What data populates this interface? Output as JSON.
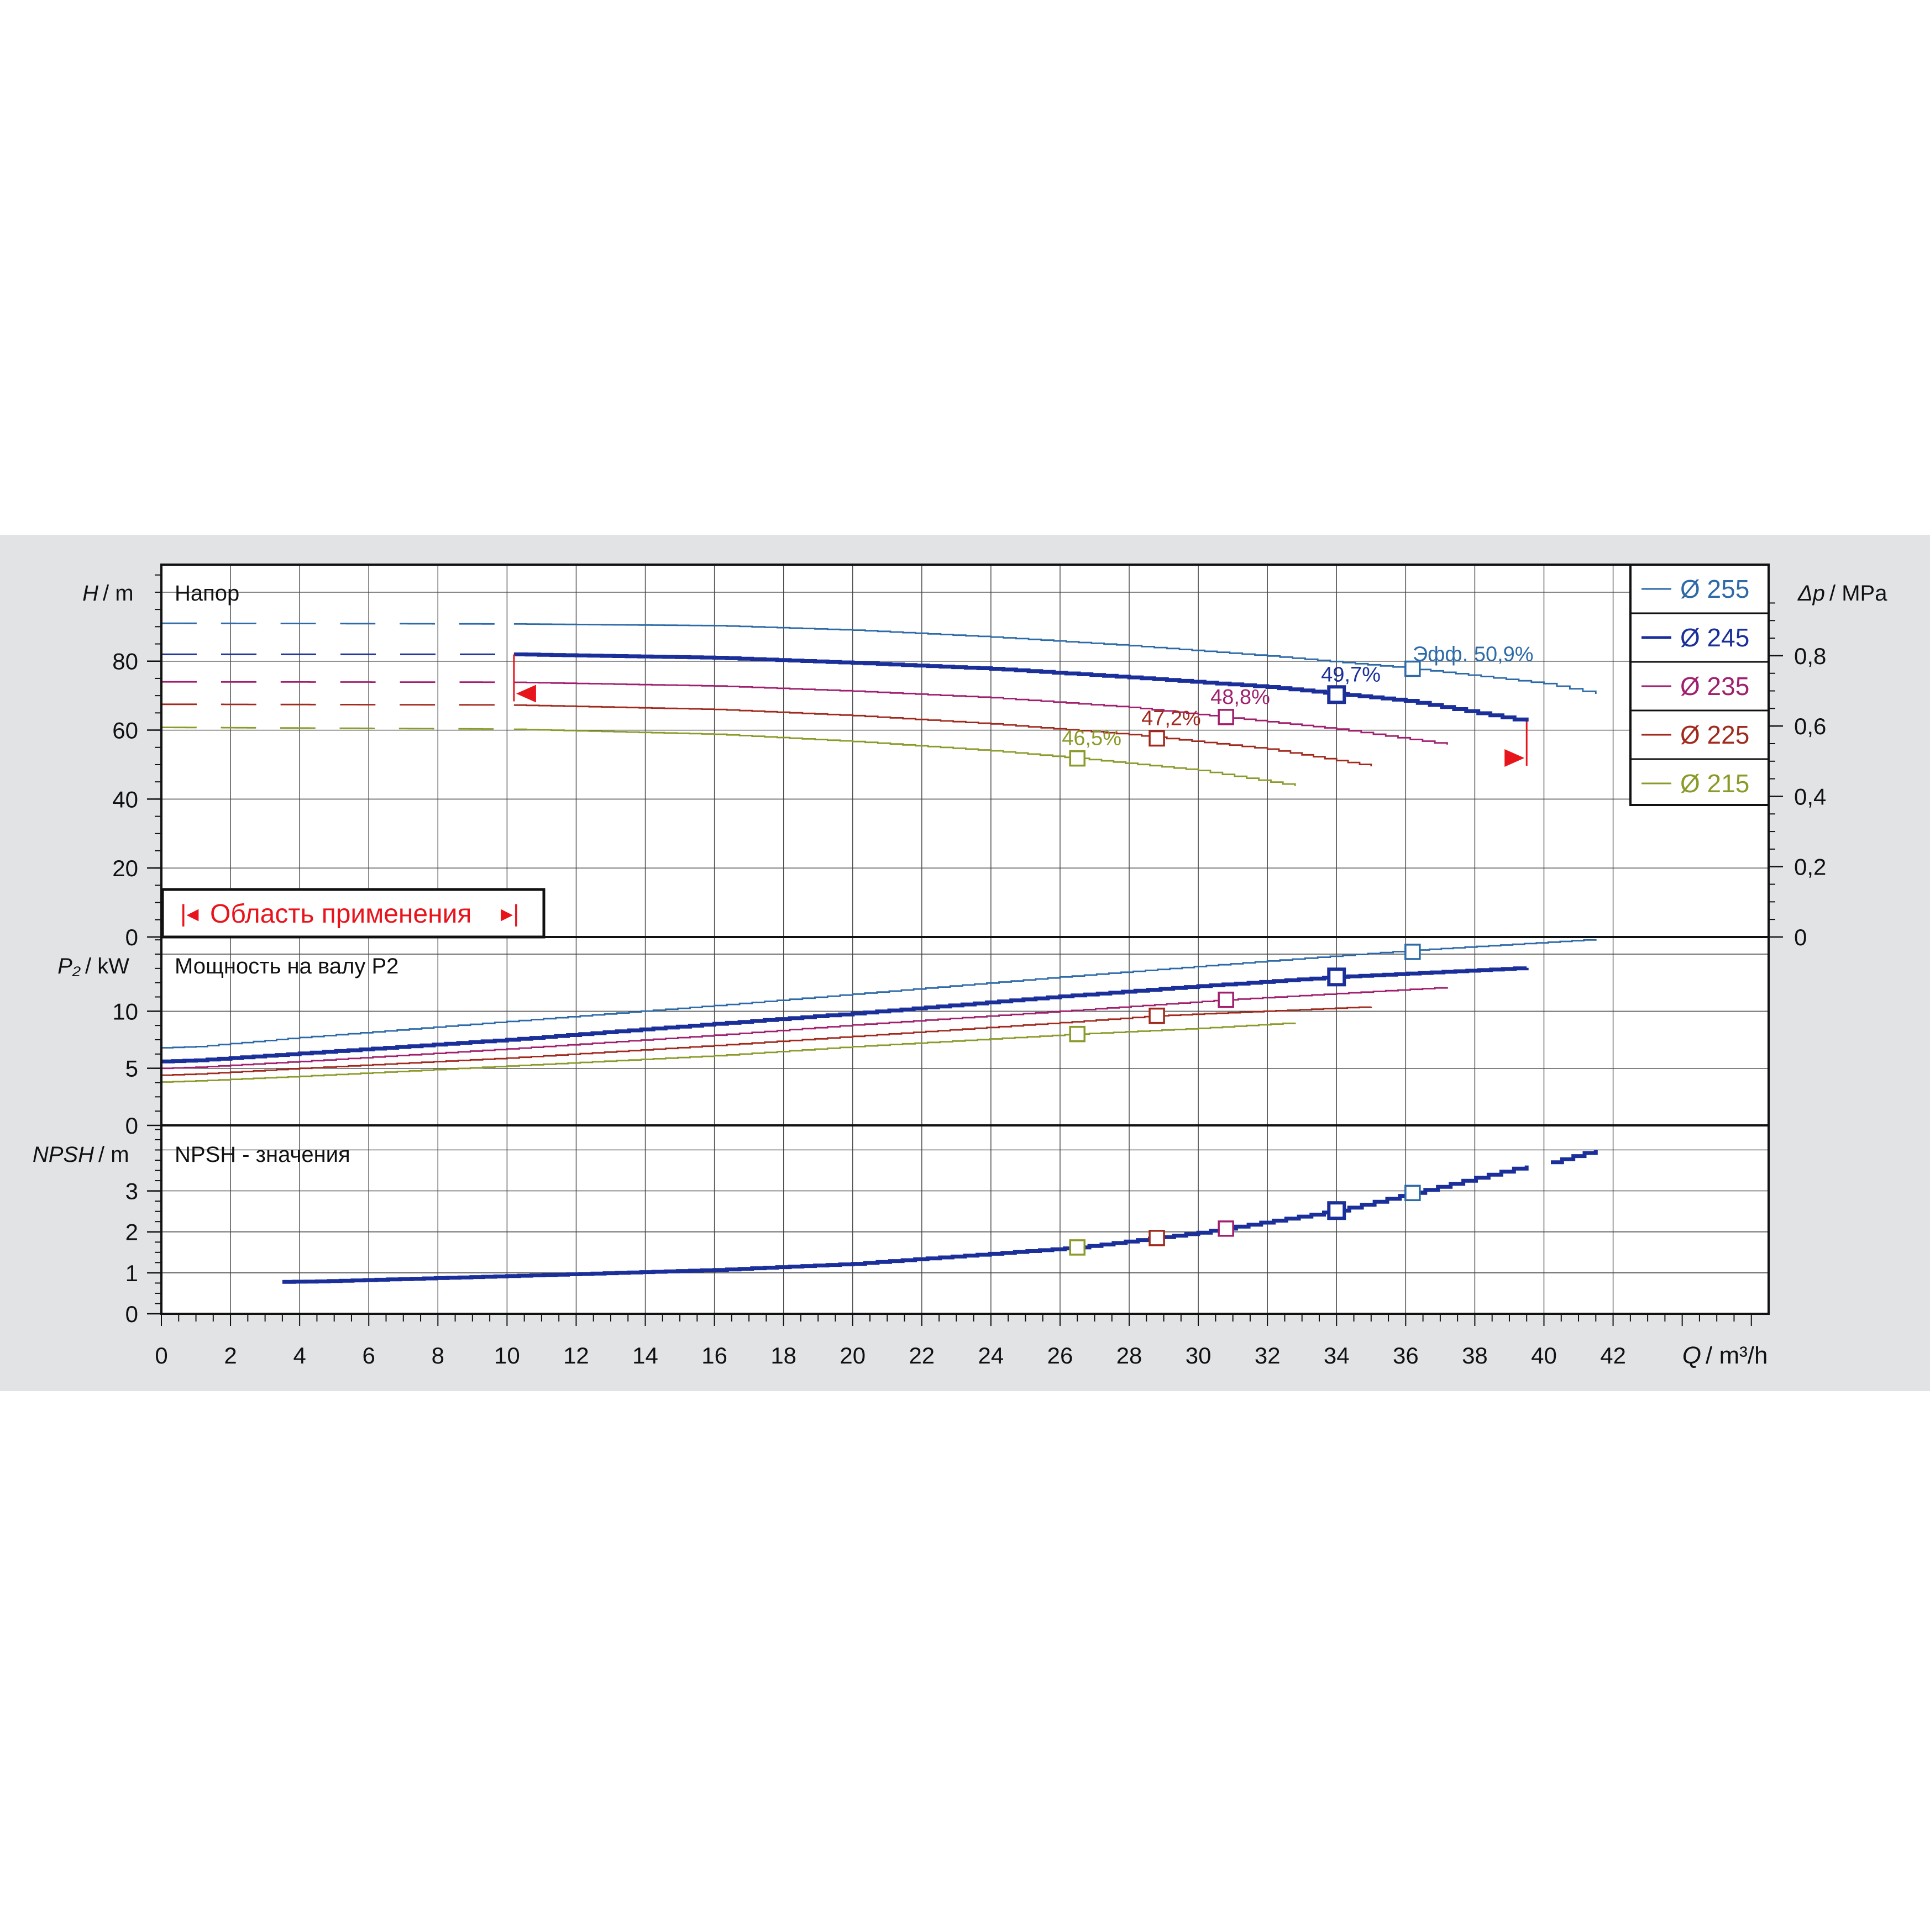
{
  "chart_data": {
    "type": "line",
    "x_label": {
      "symbol": "Q",
      "unit": "/ m³/h"
    },
    "x_range": [
      0,
      46.5
    ],
    "x_ticks": [
      0,
      2,
      4,
      6,
      8,
      10,
      12,
      14,
      16,
      18,
      20,
      22,
      24,
      26,
      28,
      30,
      32,
      34,
      36,
      38,
      40,
      42
    ],
    "grid": true,
    "legend_position": "top-right",
    "series": [
      {
        "name": "Ø 255",
        "color": "#2d6aa8",
        "primary": false
      },
      {
        "name": "Ø 245",
        "color": "#1b2f9a",
        "primary": true
      },
      {
        "name": "Ø 235",
        "color": "#a0206e",
        "primary": false
      },
      {
        "name": "Ø 225",
        "color": "#a02a1e",
        "primary": false
      },
      {
        "name": "Ø 215",
        "color": "#8c9a2a",
        "primary": false
      }
    ],
    "panels": [
      {
        "id": "head",
        "title": "Напор",
        "y_label": {
          "symbol": "H",
          "unit": "/ m"
        },
        "y_range": [
          0,
          108
        ],
        "y_ticks": [
          0,
          20,
          40,
          60,
          80
        ],
        "right_axis": {
          "symbol": "Δp",
          "unit": "/ MPa",
          "ticks": [
            "0",
            "0,2",
            "0,4",
            "0,6",
            "0,8"
          ],
          "values": [
            0,
            0.2,
            0.4,
            0.6,
            0.8
          ],
          "factor": 101.97
        },
        "annotation": "Область применения",
        "range_markers": [
          10.2,
          39.5
        ],
        "curves": [
          {
            "dashed_to": 10.2,
            "points": [
              [
                0,
                91.0
              ],
              [
                10,
                90.8
              ],
              [
                16,
                90.3
              ],
              [
                20,
                89.0
              ],
              [
                24,
                87.0
              ],
              [
                28,
                84.5
              ],
              [
                32,
                81.5
              ],
              [
                36,
                78.0
              ],
              [
                40,
                73.5
              ],
              [
                41.5,
                70.5
              ]
            ]
          },
          {
            "dashed_to": 10.2,
            "points": [
              [
                0,
                82.0
              ],
              [
                10,
                82.0
              ],
              [
                16,
                81.0
              ],
              [
                20,
                79.5
              ],
              [
                24,
                77.8
              ],
              [
                28,
                75.3
              ],
              [
                32,
                72.5
              ],
              [
                34,
                70.5
              ],
              [
                36,
                68.5
              ],
              [
                39.5,
                62.5
              ]
            ]
          },
          {
            "dashed_to": 10.2,
            "points": [
              [
                0,
                74.0
              ],
              [
                10,
                73.9
              ],
              [
                16,
                72.8
              ],
              [
                20,
                71.3
              ],
              [
                24,
                69.4
              ],
              [
                28,
                66.6
              ],
              [
                31,
                63.5
              ],
              [
                34,
                60.3
              ],
              [
                37.2,
                55.8
              ]
            ]
          },
          {
            "dashed_to": 10.2,
            "points": [
              [
                0,
                67.5
              ],
              [
                10,
                67.3
              ],
              [
                16,
                66.0
              ],
              [
                20,
                64.2
              ],
              [
                24,
                61.8
              ],
              [
                28,
                58.7
              ],
              [
                32,
                54.5
              ],
              [
                35,
                49.5
              ]
            ]
          },
          {
            "dashed_to": 10.2,
            "points": [
              [
                0,
                60.8
              ],
              [
                10,
                60.3
              ],
              [
                16,
                58.8
              ],
              [
                20,
                56.7
              ],
              [
                24,
                54.0
              ],
              [
                26.5,
                51.8
              ],
              [
                30,
                48.3
              ],
              [
                32.8,
                43.8
              ]
            ]
          }
        ],
        "operating_points": [
          {
            "q": 36.2,
            "value": 77.8,
            "label": "Эфф.  50,9%"
          },
          {
            "q": 34.0,
            "value": 70.3,
            "label": "49,7%"
          },
          {
            "q": 30.8,
            "value": 63.8,
            "label": "48,8%"
          },
          {
            "q": 28.8,
            "value": 57.6,
            "label": "47,2%"
          },
          {
            "q": 26.5,
            "value": 51.8,
            "label": "46,5%"
          }
        ]
      },
      {
        "id": "power",
        "title": "Мощность на валу Р2",
        "y_label": {
          "symbol": "P₂",
          "unit": "/ kW"
        },
        "y_range": [
          0,
          16.5
        ],
        "y_ticks": [
          0,
          5,
          10
        ],
        "curves": [
          {
            "points": [
              [
                0,
                6.8
              ],
              [
                1,
                6.9
              ],
              [
                4,
                7.7
              ],
              [
                10,
                9.1
              ],
              [
                16,
                10.5
              ],
              [
                20,
                11.5
              ],
              [
                26,
                13.0
              ],
              [
                32,
                14.4
              ],
              [
                36,
                15.3
              ],
              [
                41.5,
                16.3
              ]
            ]
          },
          {
            "points": [
              [
                0,
                5.6
              ],
              [
                1,
                5.7
              ],
              [
                4,
                6.3
              ],
              [
                10,
                7.5
              ],
              [
                16,
                8.9
              ],
              [
                20,
                9.8
              ],
              [
                26,
                11.3
              ],
              [
                30,
                12.2
              ],
              [
                34,
                13.0
              ],
              [
                39.5,
                13.8
              ]
            ]
          },
          {
            "points": [
              [
                0,
                5.0
              ],
              [
                1,
                5.1
              ],
              [
                4,
                5.6
              ],
              [
                10,
                6.7
              ],
              [
                16,
                7.9
              ],
              [
                20,
                8.8
              ],
              [
                26,
                10.0
              ],
              [
                30.8,
                11.0
              ],
              [
                37.2,
                12.1
              ]
            ]
          },
          {
            "points": [
              [
                0,
                4.4
              ],
              [
                1,
                4.5
              ],
              [
                4,
                5.0
              ],
              [
                10,
                5.9
              ],
              [
                16,
                7.0
              ],
              [
                20,
                7.8
              ],
              [
                26,
                9.0
              ],
              [
                28.8,
                9.6
              ],
              [
                35,
                10.4
              ]
            ]
          },
          {
            "points": [
              [
                0,
                3.8
              ],
              [
                1,
                3.9
              ],
              [
                4,
                4.3
              ],
              [
                10,
                5.2
              ],
              [
                16,
                6.1
              ],
              [
                20,
                6.9
              ],
              [
                26.5,
                8.0
              ],
              [
                30,
                8.5
              ],
              [
                32.8,
                9.0
              ]
            ]
          }
        ],
        "operating_points": [
          {
            "q": 36.2,
            "value": 15.2,
            "series": 0
          },
          {
            "q": 34.0,
            "value": 13.0,
            "series": 1
          },
          {
            "q": 30.8,
            "value": 11.0,
            "series": 2
          },
          {
            "q": 28.8,
            "value": 9.6,
            "series": 3
          },
          {
            "q": 26.5,
            "value": 8.0,
            "series": 4
          }
        ]
      },
      {
        "id": "npsh",
        "title": "NPSH - значения",
        "y_label": {
          "symbol": "NPSH",
          "unit": "/ m"
        },
        "y_range": [
          0,
          4.6
        ],
        "y_ticks": [
          0,
          1,
          2,
          3
        ],
        "curves": [
          {
            "points": [
              [
                3.5,
                0.78
              ],
              [
                4.5,
                0.79
              ],
              [
                10,
                0.92
              ],
              [
                16,
                1.07
              ],
              [
                20,
                1.22
              ],
              [
                26.5,
                1.62
              ],
              [
                30,
                1.98
              ],
              [
                34,
                2.52
              ],
              [
                36.2,
                2.95
              ],
              [
                39.5,
                3.62
              ]
            ]
          },
          {
            "points": [
              [
                40.2,
                3.7
              ],
              [
                41.5,
                4.0
              ]
            ]
          }
        ],
        "operating_points": [
          {
            "q": 36.2,
            "value": 2.95,
            "series": 0
          },
          {
            "q": 34.0,
            "value": 2.52,
            "series": 1
          },
          {
            "q": 30.8,
            "value": 2.08,
            "series": 2
          },
          {
            "q": 28.8,
            "value": 1.85,
            "series": 3
          },
          {
            "q": 26.5,
            "value": 1.62,
            "series": 4
          }
        ]
      }
    ]
  }
}
